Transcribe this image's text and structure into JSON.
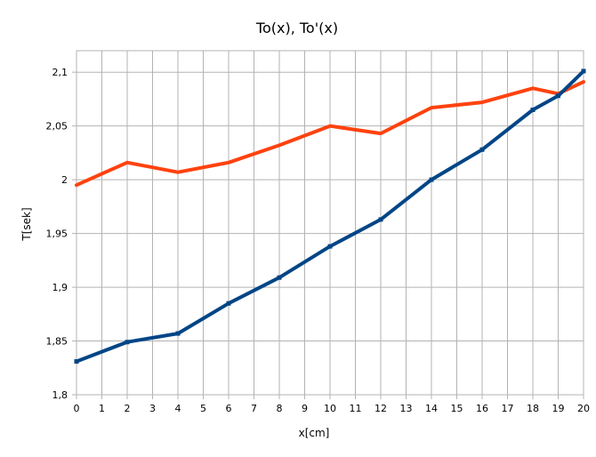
{
  "chart_data": {
    "type": "line",
    "title": "To(x), To'(x)",
    "xlabel": "x[cm]",
    "ylabel": "T[sek]",
    "x_ticks": [
      0,
      1,
      2,
      3,
      4,
      5,
      6,
      7,
      8,
      9,
      10,
      11,
      12,
      13,
      14,
      15,
      16,
      17,
      18,
      19,
      20
    ],
    "y_ticks": [
      1.8,
      1.85,
      1.9,
      1.95,
      2,
      2.05,
      2.1
    ],
    "y_tick_labels": [
      "1,8",
      "1,85",
      "1,9",
      "1,95",
      "2",
      "2,05",
      "2,1"
    ],
    "xlim": [
      0,
      20
    ],
    "ylim": [
      1.8,
      2.12
    ],
    "grid": true,
    "legend": "none",
    "series": [
      {
        "color": "#004586",
        "markers": true,
        "points": [
          {
            "x": 0,
            "y": 1.831
          },
          {
            "x": 2,
            "y": 1.849
          },
          {
            "x": 4,
            "y": 1.857
          },
          {
            "x": 6,
            "y": 1.885
          },
          {
            "x": 8,
            "y": 1.909
          },
          {
            "x": 10,
            "y": 1.938
          },
          {
            "x": 12,
            "y": 1.963
          },
          {
            "x": 14,
            "y": 2.0
          },
          {
            "x": 16,
            "y": 2.028
          },
          {
            "x": 18,
            "y": 2.065
          },
          {
            "x": 19,
            "y": 2.078
          },
          {
            "x": 20,
            "y": 2.101
          }
        ]
      },
      {
        "color": "#ff420e",
        "markers": false,
        "points": [
          {
            "x": 0,
            "y": 1.995
          },
          {
            "x": 2,
            "y": 2.016
          },
          {
            "x": 4,
            "y": 2.007
          },
          {
            "x": 6,
            "y": 2.016
          },
          {
            "x": 8,
            "y": 2.032
          },
          {
            "x": 10,
            "y": 2.05
          },
          {
            "x": 12,
            "y": 2.043
          },
          {
            "x": 14,
            "y": 2.067
          },
          {
            "x": 16,
            "y": 2.072
          },
          {
            "x": 18,
            "y": 2.085
          },
          {
            "x": 19,
            "y": 2.08
          },
          {
            "x": 20,
            "y": 2.091
          }
        ]
      }
    ]
  }
}
